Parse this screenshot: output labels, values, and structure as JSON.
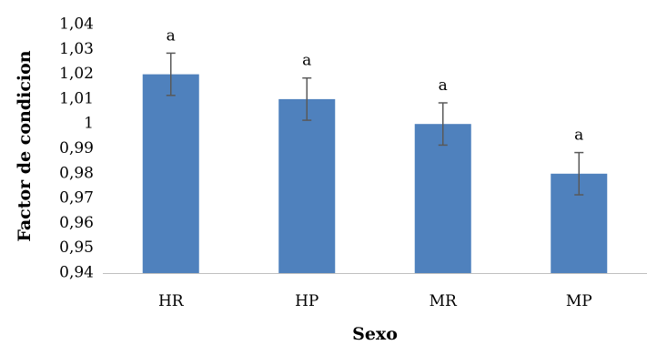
{
  "chart_data": {
    "type": "bar",
    "title": "",
    "xlabel": "Sexo",
    "ylabel": "Factor de condicion",
    "categories": [
      "HR",
      "HP",
      "MR",
      "MP"
    ],
    "values": [
      1.02,
      1.01,
      1.0,
      0.98
    ],
    "error": [
      0.0085,
      0.0085,
      0.0085,
      0.0085
    ],
    "significance_labels": [
      "a",
      "a",
      "a",
      "a"
    ],
    "ylim": [
      0.94,
      1.04
    ],
    "yticks": [
      0.94,
      0.95,
      0.96,
      0.97,
      0.98,
      0.99,
      1.0,
      1.01,
      1.02,
      1.03,
      1.04
    ],
    "ytick_labels": [
      "0,94",
      "0,95",
      "0,96",
      "0,97",
      "0,98",
      "0,99",
      "1",
      "1,01",
      "1,02",
      "1,03",
      "1,04"
    ],
    "grid": false,
    "legend": "none",
    "colors": {
      "bar": "#4f81bd",
      "error_bar": "#595959",
      "axis": "#bfbfbf"
    }
  }
}
